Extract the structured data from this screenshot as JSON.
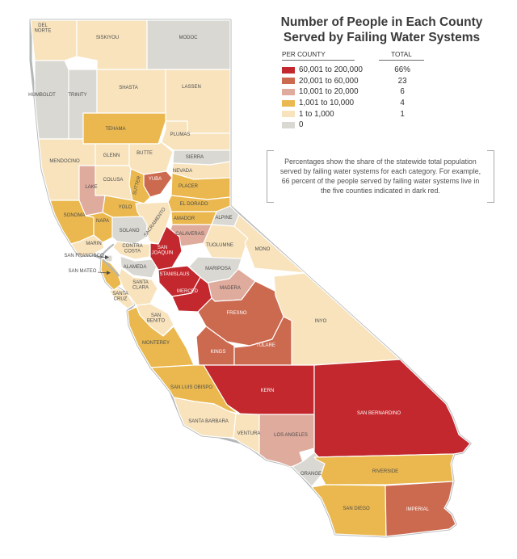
{
  "title": {
    "line1": "Number of People in Each County",
    "line2": "Served by Failing Water Systems"
  },
  "legend": {
    "per_county_header": "PER COUNTY",
    "total_header": "TOTAL",
    "rows": [
      {
        "key": "r60k",
        "label": "60,001 to 200,000",
        "total": "66%",
        "color": "#c2282d"
      },
      {
        "key": "r20k",
        "label": "20,001 to 60,000",
        "total": "23",
        "color": "#cc6a50"
      },
      {
        "key": "r10k",
        "label": "10,001 to 20,000",
        "total": "6",
        "color": "#dfab9d"
      },
      {
        "key": "r1k",
        "label": "1,001 to 10,000",
        "total": "4",
        "color": "#eab84e"
      },
      {
        "key": "r1",
        "label": "1 to 1,000",
        "total": "1",
        "color": "#f8e3bd"
      },
      {
        "key": "r0",
        "label": "0",
        "total": "",
        "color": "#d9d8d2"
      }
    ]
  },
  "note": {
    "text": "Percentages show the share of the statewide total population served by failing water systems for each category. For example, 66 percent of the people served by failing water systems live in the five counties indicated in dark red."
  },
  "map": {
    "label_color": "#4d4d4d",
    "label_color_on_dark": "#ffffff",
    "coast_color": "#b4b7b8",
    "counties": [
      {
        "id": "del-norte",
        "lines": [
          "DEL",
          "NORTE"
        ],
        "category": "r1"
      },
      {
        "id": "siskiyou",
        "lines": [
          "SISKIYOU"
        ],
        "category": "r1"
      },
      {
        "id": "modoc",
        "lines": [
          "MODOC"
        ],
        "category": "r0"
      },
      {
        "id": "humboldt",
        "lines": [
          "HUMBOLDT"
        ],
        "category": "r0"
      },
      {
        "id": "trinity",
        "lines": [
          "TRINITY"
        ],
        "category": "r0"
      },
      {
        "id": "shasta",
        "lines": [
          "SHASTA"
        ],
        "category": "r1"
      },
      {
        "id": "lassen",
        "lines": [
          "LASSEN"
        ],
        "category": "r1"
      },
      {
        "id": "tehama",
        "lines": [
          "TEHAMA"
        ],
        "category": "r1k"
      },
      {
        "id": "plumas",
        "lines": [
          "PLUMAS"
        ],
        "category": "r1"
      },
      {
        "id": "mendocino",
        "lines": [
          "MENDOCINO"
        ],
        "category": "r1"
      },
      {
        "id": "glenn",
        "lines": [
          "GLENN"
        ],
        "category": "r1"
      },
      {
        "id": "butte",
        "lines": [
          "BUTTE"
        ],
        "category": "r1"
      },
      {
        "id": "sierra",
        "lines": [
          "SIERRA"
        ],
        "category": "r0"
      },
      {
        "id": "colusa",
        "lines": [
          "COLUSA"
        ],
        "category": "r1"
      },
      {
        "id": "sutter",
        "lines": [
          "SUTTER"
        ],
        "category": "r1k"
      },
      {
        "id": "yuba",
        "lines": [
          "YUBA"
        ],
        "category": "r20k"
      },
      {
        "id": "nevada-county",
        "lines": [
          "NEVADA"
        ],
        "category": "r1"
      },
      {
        "id": "placer",
        "lines": [
          "PLACER"
        ],
        "category": "r1k"
      },
      {
        "id": "lake",
        "lines": [
          "LAKE"
        ],
        "category": "r10k"
      },
      {
        "id": "yolo",
        "lines": [
          "YOLO"
        ],
        "category": "r1k"
      },
      {
        "id": "el-dorado",
        "lines": [
          "EL DORADO"
        ],
        "category": "r1k"
      },
      {
        "id": "sonoma",
        "lines": [
          "SONOMA"
        ],
        "category": "r1k"
      },
      {
        "id": "napa",
        "lines": [
          "NAPA"
        ],
        "category": "r1k"
      },
      {
        "id": "sacramento",
        "lines": [
          "SACRAMENTO"
        ],
        "category": "r1"
      },
      {
        "id": "amador",
        "lines": [
          "AMADOR"
        ],
        "category": "r1k"
      },
      {
        "id": "alpine",
        "lines": [
          "ALPINE"
        ],
        "category": "r0"
      },
      {
        "id": "solano",
        "lines": [
          "SOLANO"
        ],
        "category": "r0"
      },
      {
        "id": "calaveras",
        "lines": [
          "CALAVERAS"
        ],
        "category": "r10k"
      },
      {
        "id": "tuolumne",
        "lines": [
          "TUOLUMNE"
        ],
        "category": "r1"
      },
      {
        "id": "mono",
        "lines": [
          "MONO"
        ],
        "category": "r1"
      },
      {
        "id": "marin",
        "lines": [
          "MARIN"
        ],
        "category": "r1"
      },
      {
        "id": "contra-costa",
        "lines": [
          "CONTRA",
          "COSTA"
        ],
        "category": "r1"
      },
      {
        "id": "san-francisco",
        "lines": [
          "SAN FRANCISCO"
        ],
        "category": "r0"
      },
      {
        "id": "alameda",
        "lines": [
          "ALAMEDA"
        ],
        "category": "r0"
      },
      {
        "id": "san-mateo",
        "lines": [
          "SAN MATEO"
        ],
        "category": "r1k"
      },
      {
        "id": "san-joaquin",
        "lines": [
          "SAN",
          "JOAQUIN"
        ],
        "category": "r60k"
      },
      {
        "id": "stanislaus",
        "lines": [
          "STANISLAUS"
        ],
        "category": "r60k"
      },
      {
        "id": "merced",
        "lines": [
          "MERCED"
        ],
        "category": "r60k"
      },
      {
        "id": "mariposa",
        "lines": [
          "MARIPOSA"
        ],
        "category": "r0"
      },
      {
        "id": "madera",
        "lines": [
          "MADERA"
        ],
        "category": "r10k"
      },
      {
        "id": "santa-clara",
        "lines": [
          "SANTA",
          "CLARA"
        ],
        "category": "r1"
      },
      {
        "id": "santa-cruz",
        "lines": [
          "SANTA",
          "CRUZ"
        ],
        "category": "r1"
      },
      {
        "id": "san-benito",
        "lines": [
          "SAN",
          "BENITO"
        ],
        "category": "r1"
      },
      {
        "id": "fresno",
        "lines": [
          "FRESNO"
        ],
        "category": "r20k"
      },
      {
        "id": "inyo",
        "lines": [
          "INYO"
        ],
        "category": "r1"
      },
      {
        "id": "monterey",
        "lines": [
          "MONTEREY"
        ],
        "category": "r1k"
      },
      {
        "id": "kings",
        "lines": [
          "KINGS"
        ],
        "category": "r20k"
      },
      {
        "id": "tulare",
        "lines": [
          "TULARE"
        ],
        "category": "r20k"
      },
      {
        "id": "san-luis-obispo",
        "lines": [
          "SAN LUIS OBISPO"
        ],
        "category": "r1k"
      },
      {
        "id": "kern",
        "lines": [
          "KERN"
        ],
        "category": "r60k"
      },
      {
        "id": "san-bernardino",
        "lines": [
          "SAN BERNARDINO"
        ],
        "category": "r60k"
      },
      {
        "id": "santa-barbara",
        "lines": [
          "SANTA BARBARA"
        ],
        "category": "r1"
      },
      {
        "id": "ventura",
        "lines": [
          "VENTURA"
        ],
        "category": "r1"
      },
      {
        "id": "los-angeles",
        "lines": [
          "LOS ANGELES"
        ],
        "category": "r10k"
      },
      {
        "id": "orange",
        "lines": [
          "ORANGE"
        ],
        "category": "r0"
      },
      {
        "id": "riverside",
        "lines": [
          "RIVERSIDE"
        ],
        "category": "r1k"
      },
      {
        "id": "san-diego",
        "lines": [
          "SAN DIEGO"
        ],
        "category": "r1k"
      },
      {
        "id": "imperial",
        "lines": [
          "IMPERIAL"
        ],
        "category": "r20k"
      }
    ]
  }
}
